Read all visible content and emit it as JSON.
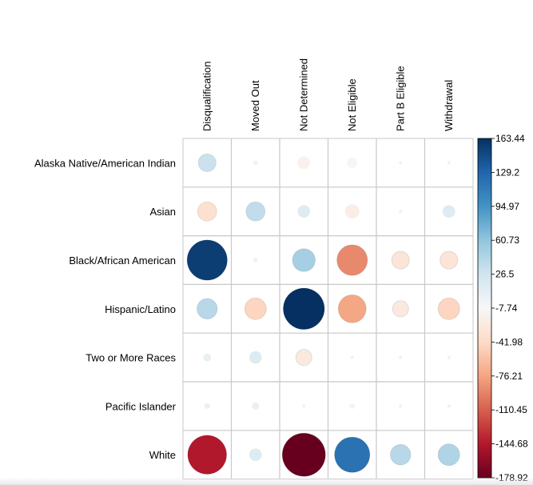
{
  "chart_data": {
    "type": "heatmap",
    "title": "",
    "columns": [
      "Disqualification",
      "Moved Out",
      "Not Determined",
      "Not Eligible",
      "Part B Eligible",
      "Withdrawal"
    ],
    "rows": [
      "Alaska Native/American Indian",
      "Asian",
      "Black/African American",
      "Hispanic/Latino",
      "Two or More Races",
      "Pacific Islander",
      "White"
    ],
    "values": [
      [
        30,
        2,
        -15,
        -10,
        1,
        1
      ],
      [
        -35,
        35,
        15,
        -20,
        1,
        15
      ],
      [
        155,
        2,
        50,
        -90,
        -30,
        -30
      ],
      [
        40,
        -45,
        163.44,
        -75,
        -25,
        -45
      ],
      [
        6,
        15,
        -25,
        1,
        1,
        1
      ],
      [
        3,
        5,
        1,
        -3,
        1,
        1
      ],
      [
        -145,
        15,
        -178.92,
        120,
        40,
        45
      ]
    ],
    "colorbar": {
      "min": -178.92,
      "max": 163.44,
      "ticks": [
        "163.44",
        "129.2",
        "94.97",
        "60.73",
        "26.5",
        "-7.74",
        "-41.98",
        "-76.21",
        "-110.45",
        "-144.68",
        "-178.92"
      ],
      "colors": [
        "#67001f",
        "#b2182b",
        "#d6604d",
        "#f4a582",
        "#fddbc7",
        "#f7f7f7",
        "#d1e5f0",
        "#92c5de",
        "#4393c3",
        "#2166ac",
        "#053061"
      ]
    }
  }
}
